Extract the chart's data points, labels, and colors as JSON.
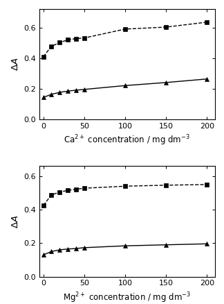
{
  "top_plot": {
    "xlabel": "Ca$^{2+}$ concentration / mg dm$^{-3}$",
    "ylabel": "$\\Delta A$",
    "xlim": [
      -5,
      210
    ],
    "ylim": [
      0,
      0.72
    ],
    "yticks": [
      0,
      0.2,
      0.4,
      0.6
    ],
    "xticks": [
      0,
      50,
      100,
      150,
      200
    ],
    "square_x": [
      0,
      10,
      20,
      30,
      40,
      50,
      100,
      150,
      200
    ],
    "square_y": [
      0.41,
      0.478,
      0.502,
      0.52,
      0.528,
      0.532,
      0.59,
      0.603,
      0.635
    ],
    "triangle_x": [
      0,
      10,
      20,
      30,
      40,
      50,
      100,
      150,
      200
    ],
    "triangle_y": [
      0.145,
      0.165,
      0.178,
      0.186,
      0.192,
      0.197,
      0.222,
      0.242,
      0.265
    ]
  },
  "bottom_plot": {
    "xlabel": "Mg$^{2+}$ concentration / mg dm$^{-3}$",
    "ylabel": "$\\Delta A$",
    "xlim": [
      -5,
      210
    ],
    "ylim": [
      0,
      0.66
    ],
    "yticks": [
      0,
      0.2,
      0.4,
      0.6
    ],
    "xticks": [
      0,
      50,
      100,
      150,
      200
    ],
    "square_x": [
      0,
      10,
      20,
      30,
      40,
      50,
      100,
      150,
      200
    ],
    "square_y": [
      0.425,
      0.488,
      0.505,
      0.515,
      0.522,
      0.528,
      0.54,
      0.546,
      0.55
    ],
    "triangle_x": [
      0,
      10,
      20,
      30,
      40,
      50,
      100,
      150,
      200
    ],
    "triangle_y": [
      0.13,
      0.15,
      0.16,
      0.165,
      0.168,
      0.173,
      0.184,
      0.19,
      0.196
    ]
  },
  "line_color": "#000000",
  "marker_size": 5,
  "linewidth": 1.0,
  "label_fontsize": 8.5,
  "tick_fontsize": 8
}
